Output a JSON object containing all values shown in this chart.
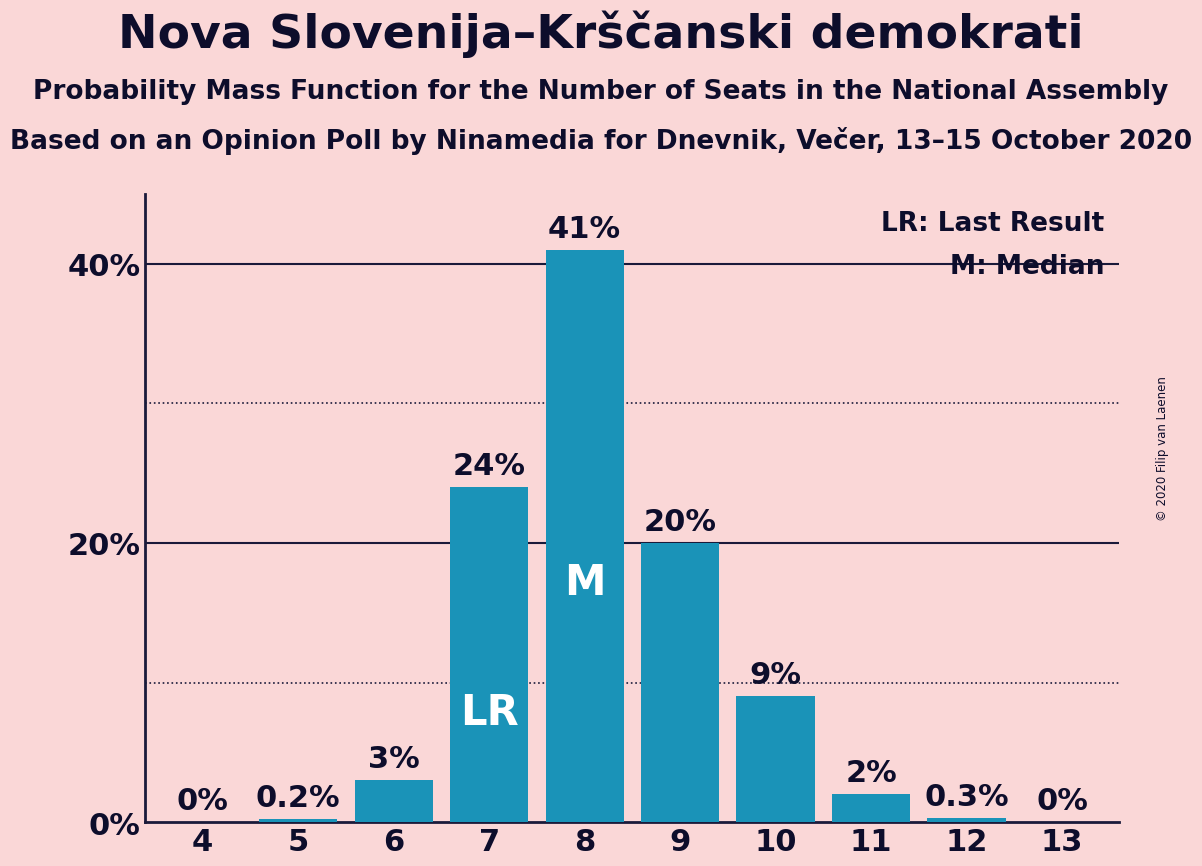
{
  "title": "Nova Slovenija–Krščanski demokrati",
  "subtitle1": "Probability Mass Function for the Number of Seats in the National Assembly",
  "subtitle2": "Based on an Opinion Poll by Ninamedia for Dnevnik, Večer, 13–15 October 2020",
  "copyright": "© 2020 Filip van Laenen",
  "categories": [
    4,
    5,
    6,
    7,
    8,
    9,
    10,
    11,
    12,
    13
  ],
  "values": [
    0.0,
    0.2,
    3.0,
    24.0,
    41.0,
    20.0,
    9.0,
    2.0,
    0.3,
    0.0
  ],
  "labels": [
    "0%",
    "0.2%",
    "3%",
    "24%",
    "41%",
    "20%",
    "9%",
    "2%",
    "0.3%",
    "0%"
  ],
  "bar_color": "#1A93B8",
  "background_color": "#FAD7D7",
  "title_color": "#0D0D2B",
  "label_color": "#0D0D2B",
  "label_color_inside": "#FFFFFF",
  "lr_bar": 7,
  "median_bar": 8,
  "lr_label": "LR",
  "median_label": "M",
  "legend_lr": "LR: Last Result",
  "legend_m": "M: Median",
  "ylim": [
    0,
    45
  ],
  "yticks": [
    0,
    20,
    40
  ],
  "ytick_labels": [
    "0%",
    "20%",
    "40%"
  ],
  "dotted_lines": [
    10,
    30
  ],
  "solid_lines": [
    20,
    40
  ],
  "title_fontsize": 34,
  "subtitle_fontsize": 19,
  "axis_label_fontsize": 22,
  "bar_label_fontsize": 22,
  "legend_fontsize": 19,
  "inside_label_fontsize": 30
}
